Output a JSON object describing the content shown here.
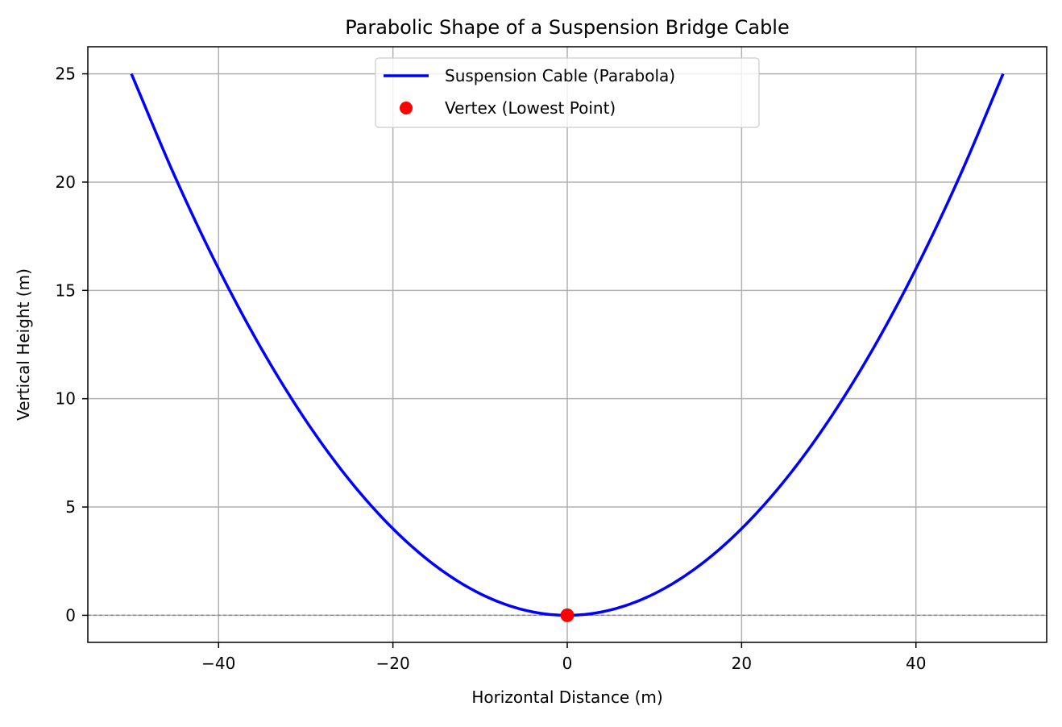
{
  "chart_data": {
    "type": "line",
    "title": "Parabolic Shape of a Suspension Bridge Cable",
    "xlabel": "Horizontal Distance (m)",
    "ylabel": "Vertical Height (m)",
    "xlim": [
      -55,
      55
    ],
    "ylim": [
      -1.25,
      26.25
    ],
    "grid": true,
    "legend_position": "upper center",
    "x_ticks": [
      -40,
      -20,
      0,
      20,
      40
    ],
    "x_tick_labels": [
      "−40",
      "−20",
      "0",
      "20",
      "40"
    ],
    "y_ticks": [
      0,
      5,
      10,
      15,
      20,
      25
    ],
    "y_tick_labels": [
      "0",
      "5",
      "10",
      "15",
      "20",
      "25"
    ],
    "series": [
      {
        "name": "Suspension Cable (Parabola)",
        "kind": "line",
        "color": "#0000ff",
        "x": [
          -50,
          -45,
          -40,
          -35,
          -30,
          -25,
          -20,
          -15,
          -10,
          -5,
          0,
          5,
          10,
          15,
          20,
          25,
          30,
          35,
          40,
          45,
          50
        ],
        "y": [
          25,
          20.25,
          16,
          12.25,
          9,
          6.25,
          4,
          2.25,
          1,
          0.25,
          0,
          0.25,
          1,
          2.25,
          4,
          6.25,
          9,
          12.25,
          16,
          20.25,
          25
        ]
      },
      {
        "name": "Vertex (Lowest Point)",
        "kind": "scatter",
        "color": "#ff0000",
        "x": [
          0
        ],
        "y": [
          0
        ]
      }
    ],
    "reference_line": {
      "y": 0,
      "style": "dashed",
      "color": "#808080"
    }
  }
}
